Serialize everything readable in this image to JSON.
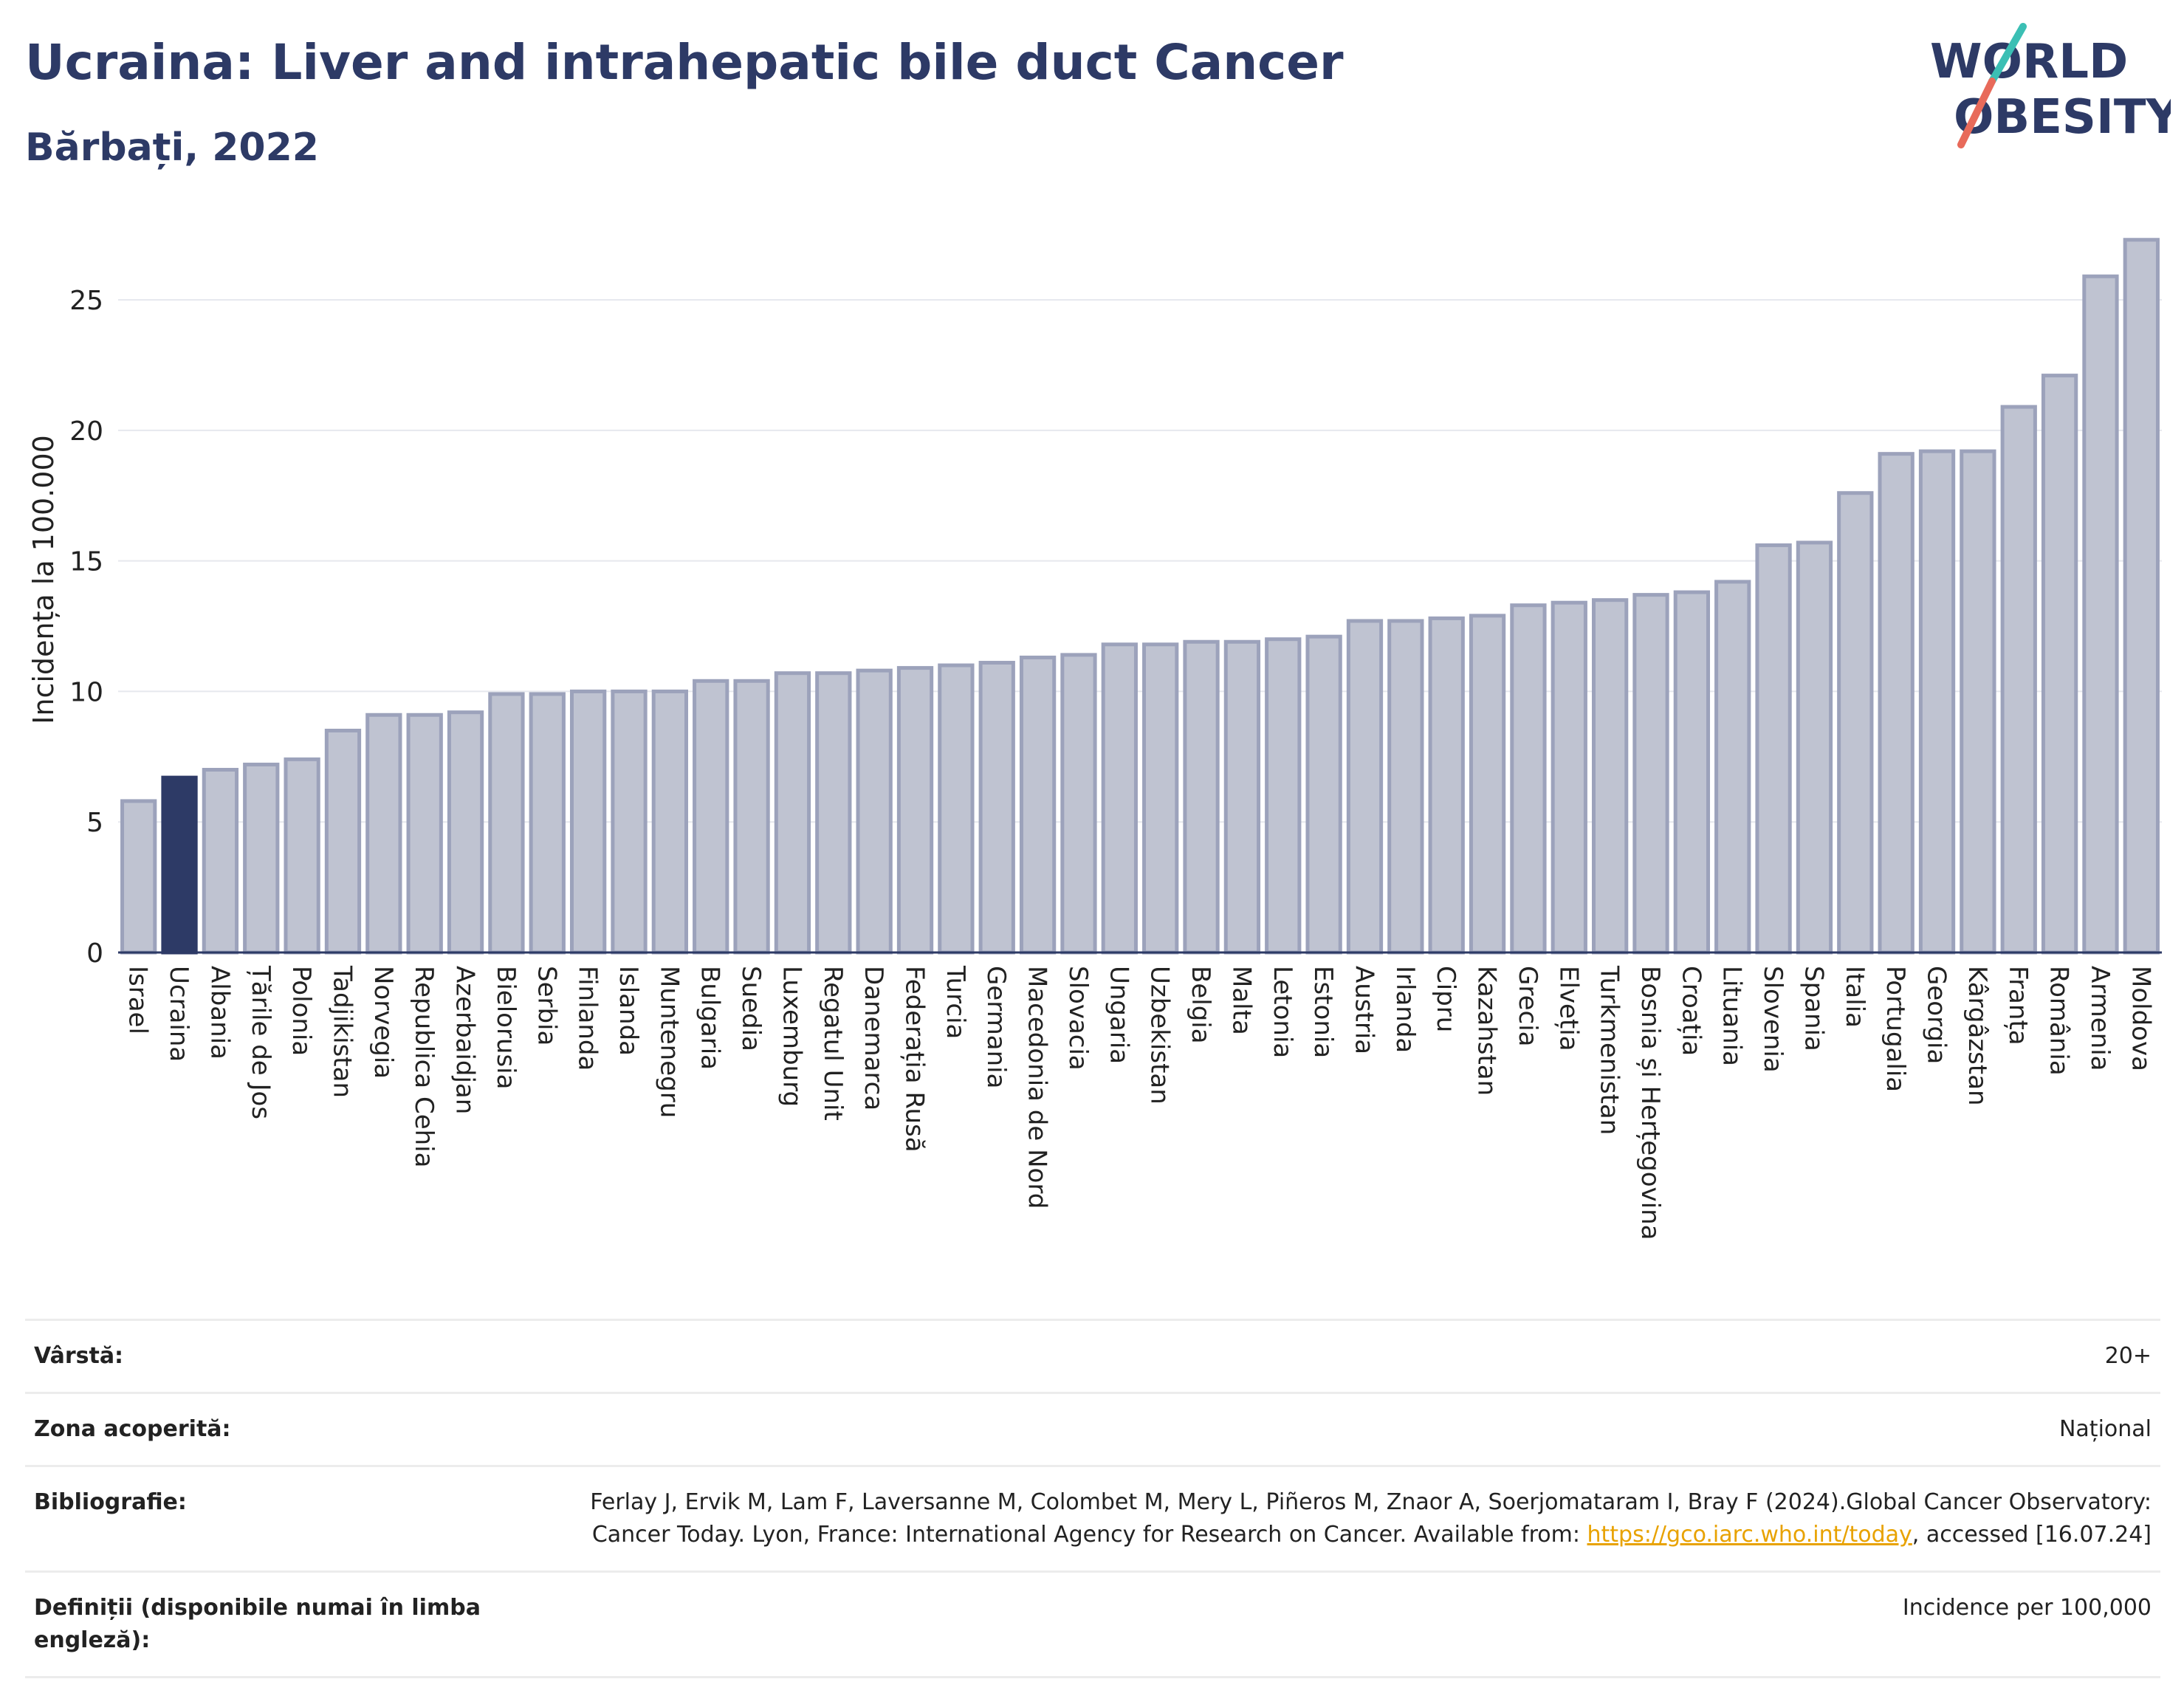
{
  "header": {
    "title": "Ucraina: Liver and intrahepatic bile duct Cancer",
    "subtitle": "Bărbați, 2022"
  },
  "logo": {
    "line1": "WORLD",
    "line2": "OBESITY"
  },
  "colors": {
    "bar": "#bfc3d1",
    "bar_stroke": "#9ca2bb",
    "highlight": "#2d3a66",
    "title": "#2d3a66"
  },
  "chart_data": {
    "type": "bar",
    "ylabel": "Incidența la 100.000",
    "ylim": [
      0,
      28
    ],
    "yticks": [
      0,
      5,
      10,
      15,
      20,
      25
    ],
    "grid": true,
    "highlight": "Ucraina",
    "categories": [
      "Israel",
      "Ucraina",
      "Albania",
      "Țările de Jos",
      "Polonia",
      "Tadjikistan",
      "Norvegia",
      "Republica Cehia",
      "Azerbaidjan",
      "Bielorusia",
      "Serbia",
      "Finlanda",
      "Islanda",
      "Muntenegru",
      "Bulgaria",
      "Suedia",
      "Luxemburg",
      "Regatul Unit",
      "Danemarca",
      "Federația Rusă",
      "Turcia",
      "Germania",
      "Macedonia de Nord",
      "Slovacia",
      "Ungaria",
      "Uzbekistan",
      "Belgia",
      "Malta",
      "Letonia",
      "Estonia",
      "Austria",
      "Irlanda",
      "Cipru",
      "Kazahstan",
      "Grecia",
      "Elveția",
      "Turkmenistan",
      "Bosnia și Herțegovina",
      "Croația",
      "Lituania",
      "Slovenia",
      "Spania",
      "Italia",
      "Portugalia",
      "Georgia",
      "Kârgâzstan",
      "Franța",
      "România",
      "Armenia",
      "Moldova"
    ],
    "values": [
      5.8,
      6.7,
      7.0,
      7.2,
      7.4,
      8.5,
      9.1,
      9.1,
      9.2,
      9.9,
      9.9,
      10.0,
      10.0,
      10.0,
      10.4,
      10.4,
      10.7,
      10.7,
      10.8,
      10.9,
      11.0,
      11.1,
      11.3,
      11.4,
      11.8,
      11.8,
      11.9,
      11.9,
      12.0,
      12.1,
      12.7,
      12.7,
      12.8,
      12.9,
      13.3,
      13.4,
      13.5,
      13.7,
      13.8,
      14.2,
      15.6,
      15.7,
      17.6,
      19.1,
      19.2,
      19.2,
      20.9,
      22.1,
      25.9,
      27.3
    ]
  },
  "meta": {
    "age_label": "Vârstă:",
    "age_value": "20+",
    "area_label": "Zona acoperită:",
    "area_value": "Național",
    "bib_label": "Bibliografie:",
    "bib_text1": "Ferlay J, Ervik M, Lam F, Laversanne M, Colombet M, Mery L, Piñeros M, Znaor A, Soerjomataram I, Bray F (2024).Global Cancer Observatory: Cancer Today. Lyon, France: International Agency for Research on Cancer. Available from: ",
    "bib_link": "https://gco.iarc.who.int/today",
    "bib_text2": ", accessed [16.07.24]",
    "def_label": "Definiții (disponibile numai în limba engleză):",
    "def_value": "Incidence per 100,000"
  }
}
